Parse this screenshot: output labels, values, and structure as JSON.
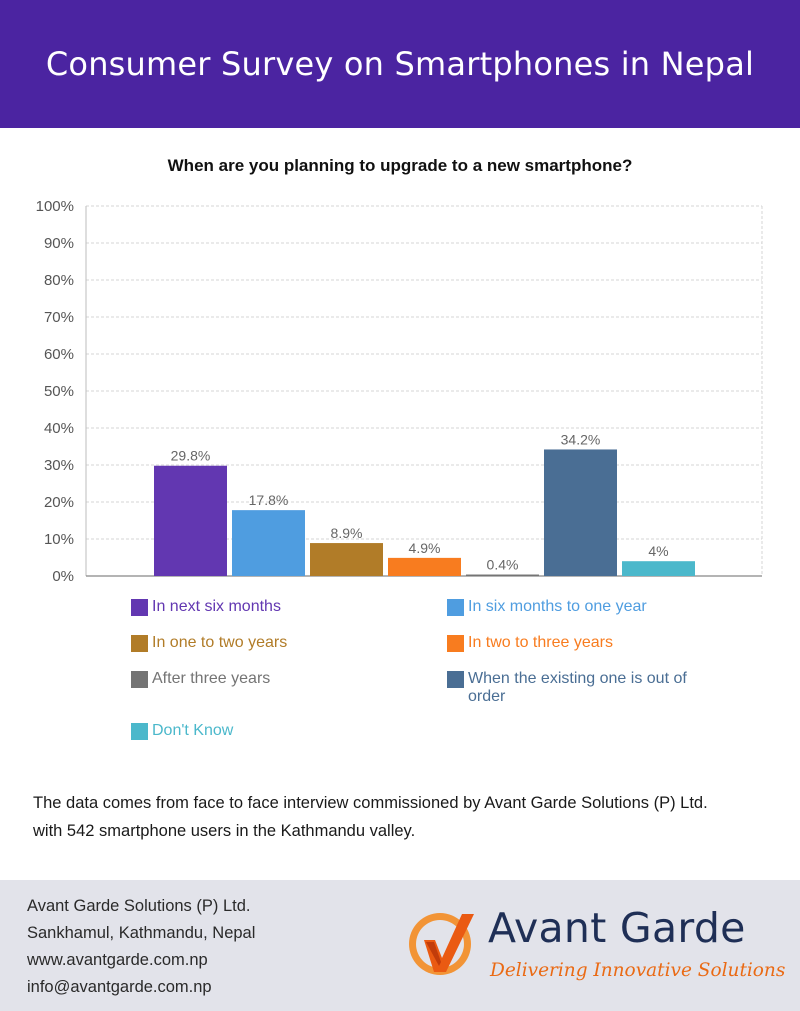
{
  "header": {
    "title": "Consumer Survey on Smartphones in Nepal"
  },
  "chart_data": {
    "type": "bar",
    "title": "When are you planning to upgrade to a new smartphone?",
    "ylim": [
      0,
      100
    ],
    "y_ticks": [
      "0%",
      "10%",
      "20%",
      "30%",
      "40%",
      "50%",
      "60%",
      "70%",
      "80%",
      "90%",
      "100%"
    ],
    "grid": true,
    "legend_position": "bottom",
    "series": [
      {
        "name": "In next six months",
        "value": 29.8,
        "label": "29.8%",
        "color": "#6237b1"
      },
      {
        "name": "In six months to one year",
        "value": 17.8,
        "label": "17.8%",
        "color": "#4f9de0"
      },
      {
        "name": "In one to two years",
        "value": 8.9,
        "label": "8.9%",
        "color": "#b17c28"
      },
      {
        "name": "In two to three years",
        "value": 4.9,
        "label": "4.9%",
        "color": "#f87c1f"
      },
      {
        "name": "After three years",
        "value": 0.4,
        "label": "0.4%",
        "color": "#747474"
      },
      {
        "name": "When the existing one is out of order",
        "value": 34.2,
        "label": "34.2%",
        "color": "#4a6e94"
      },
      {
        "name": "Don't Know",
        "value": 4,
        "label": "4%",
        "color": "#4bb8cb"
      }
    ]
  },
  "note": {
    "line1": "The data comes from face to face interview commissioned by Avant Garde Solutions (P) Ltd.",
    "line2": "with 542 smartphone users in the Kathmandu valley."
  },
  "footer": {
    "company": "Avant Garde Solutions (P) Ltd.",
    "address": "Sankhamul, Kathmandu, Nepal",
    "website": "www.avantgarde.com.np",
    "email": "info@avantgarde.com.np",
    "logo_name": "Avant Garde",
    "logo_tagline": "Delivering Innovative Solutions"
  }
}
